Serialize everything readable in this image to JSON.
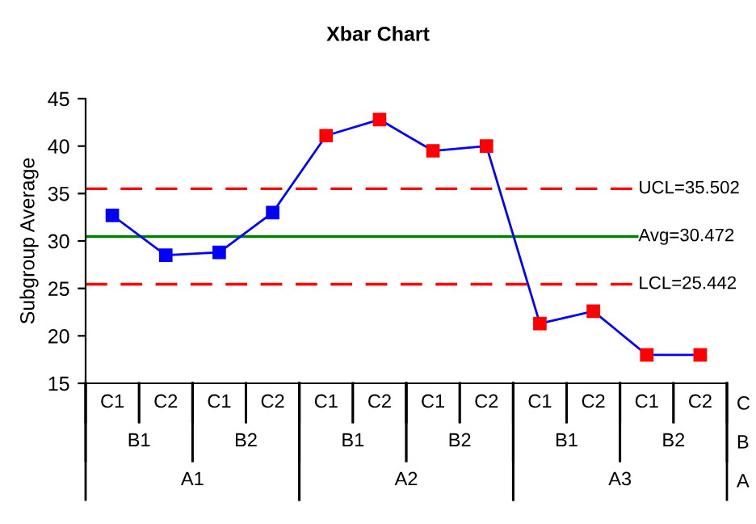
{
  "chart_data": {
    "type": "line",
    "title": "Xbar Chart",
    "ylabel": "Subgroup Average",
    "categories": [
      "C1",
      "C2",
      "C1",
      "C2",
      "C1",
      "C2",
      "C1",
      "C2",
      "C1",
      "C2",
      "C1",
      "C2"
    ],
    "series": [
      {
        "color": "#0000ff",
        "colors": [
          "#0000ff",
          "#0000ff",
          "#0000ff",
          "#0000ff",
          "#ff0000",
          "#ff0000",
          "#ff0000",
          "#ff0000",
          "#ff0000",
          "#ff0000",
          "#ff0000",
          "#ff0000"
        ],
        "values": [
          32.7,
          28.5,
          28.8,
          33.0,
          41.1,
          42.8,
          39.5,
          40.0,
          21.3,
          22.6,
          18.0,
          18.0
        ]
      }
    ],
    "ylim": [
      15,
      45
    ],
    "yticks": [
      15,
      20,
      25,
      30,
      35,
      40,
      45
    ],
    "ref_lines": [
      {
        "axis": "y",
        "value": 35.502,
        "label": "UCL=35.502",
        "color": "#ff0000",
        "line_style": "dashed"
      },
      {
        "axis": "y",
        "value": 30.472,
        "label": "Avg=30.472",
        "color": "#008000",
        "line_style": "solid"
      },
      {
        "axis": "y",
        "value": 25.442,
        "label": "LCL=25.442",
        "color": "#ff0000",
        "line_style": "dashed"
      }
    ],
    "annotations": [
      "B1",
      "B2",
      "B1",
      "B2",
      "B1",
      "B2",
      "A1",
      "A2",
      "A3",
      "C",
      "B",
      "A"
    ],
    "marker": "square",
    "grid": false,
    "legend": false
  }
}
